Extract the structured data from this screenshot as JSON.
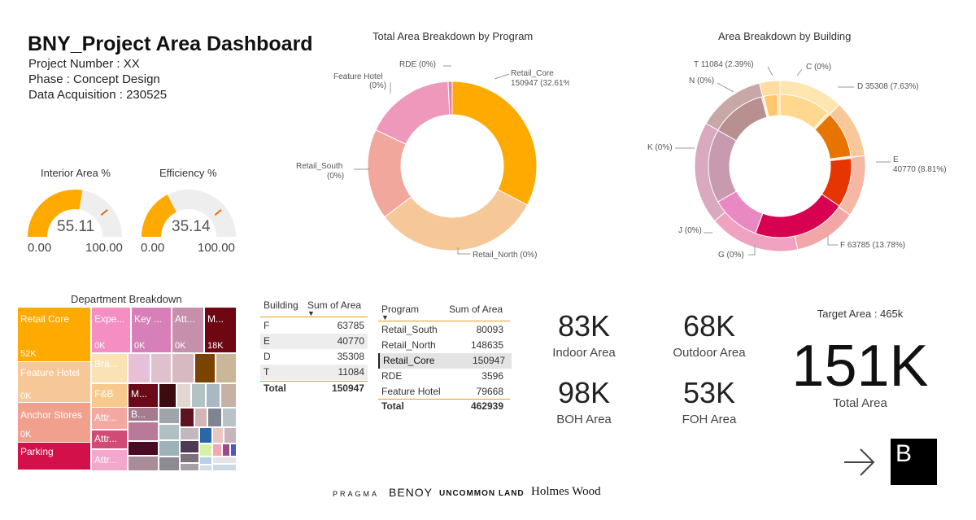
{
  "header": {
    "title": "BNY_Project Area Dashboard",
    "project_number": "Project Number : XX",
    "phase": "Phase : Concept Design",
    "data_acquisition": "Data Acquisition : 230525"
  },
  "gauges": [
    {
      "label": "Interior Area %",
      "value": "55.11",
      "min": "0.00",
      "max": "100.00",
      "fill_fraction": 0.5511,
      "target_fraction": 0.78
    },
    {
      "label": "Efficiency %",
      "value": "35.14",
      "min": "0.00",
      "max": "100.00",
      "fill_fraction": 0.3514,
      "target_fraction": 0.78
    }
  ],
  "chart_data": [
    {
      "type": "pie",
      "title": "Total Area Breakdown by Program",
      "slices": [
        {
          "name": "Retail_Core",
          "value": 150947,
          "label": "Retail_Core\n150947 (32.61%)",
          "color": "#FFAA00"
        },
        {
          "name": "Retail_North",
          "value": 148635,
          "label": "Retail_North (0%)",
          "color": "#F6C797"
        },
        {
          "name": "Retail_South",
          "value": 80093,
          "label": "Retail_South\n(0%)",
          "color": "#F1A79B"
        },
        {
          "name": "Feature Hotel",
          "value": 79668,
          "label": "Feature Hotel\n(0%)",
          "color": "#EE98BC"
        },
        {
          "name": "RDE",
          "value": 3596,
          "label": "RDE (0%)",
          "color": "#E080B0"
        }
      ]
    },
    {
      "type": "pie",
      "title": "Area Breakdown by Building",
      "slices": [
        {
          "name": "C",
          "label": "C (0%)"
        },
        {
          "name": "D",
          "label": "D 35308 (7.63%)"
        },
        {
          "name": "E",
          "label": "E\n40770 (8.81%)"
        },
        {
          "name": "F",
          "label": "F 63785 (13.78%)"
        },
        {
          "name": "G",
          "label": "G (0%)"
        },
        {
          "name": "J",
          "label": "J (0%)"
        },
        {
          "name": "K",
          "label": "K (0%)"
        },
        {
          "name": "N",
          "label": "N (0%)"
        },
        {
          "name": "T",
          "label": "T 11084 (2.39%)"
        }
      ]
    }
  ],
  "treemap": {
    "title": "Department Breakdown",
    "labels": {
      "retail_core": "Retail Core",
      "retail_core_value": "52K",
      "feature_hotel": "Feature Hotel",
      "feature_hotel_value": "0K",
      "anchor_stores": "Anchor Stores",
      "anchor_stores_value": "0K",
      "parking": "Parking",
      "expe": "Expe...",
      "expe_value": "0K",
      "key": "Key ...",
      "key_value": "0K",
      "att1": "Att...",
      "att1_value": "0K",
      "m1": "M...",
      "m1_value": "18K",
      "bra": "Bra...",
      "fb": "F&B",
      "m2": "M...",
      "attr1": "Attr...",
      "b": "B...",
      "attr2": "Attr...",
      "attr3": "Attr..."
    }
  },
  "building_table": {
    "header_building": "Building",
    "header_sum": "Sum of Area",
    "rows": [
      {
        "name": "F",
        "value": "63785"
      },
      {
        "name": "E",
        "value": "40770"
      },
      {
        "name": "D",
        "value": "35308"
      },
      {
        "name": "T",
        "value": "11084"
      }
    ],
    "total_label": "Total",
    "total_value": "150947"
  },
  "program_table": {
    "header_program": "Program",
    "header_sum": "Sum of Area",
    "rows": [
      {
        "name": "Retail_South",
        "value": "80093"
      },
      {
        "name": "Retail_North",
        "value": "148635"
      },
      {
        "name": "Retail_Core",
        "value": "150947"
      },
      {
        "name": "RDE",
        "value": "3596"
      },
      {
        "name": "Feature Hotel",
        "value": "79668"
      }
    ],
    "total_label": "Total",
    "total_value": "462939"
  },
  "kpis": {
    "indoor_value": "83K",
    "indoor_label": "Indoor Area",
    "outdoor_value": "68K",
    "outdoor_label": "Outdoor Area",
    "boh_value": "98K",
    "boh_label": "BOH Area",
    "foh_value": "53K",
    "foh_label": "FOH Area",
    "target_label": "Target Area : 465k",
    "total_value": "151K",
    "total_label": "Total Area"
  },
  "footer": {
    "logos": [
      "PRAGMA",
      "BENOY",
      "UNCOMMON LAND",
      "Holmes Wood"
    ],
    "nav_letter": "B",
    "arrow_icon": "arrow-right-icon"
  }
}
